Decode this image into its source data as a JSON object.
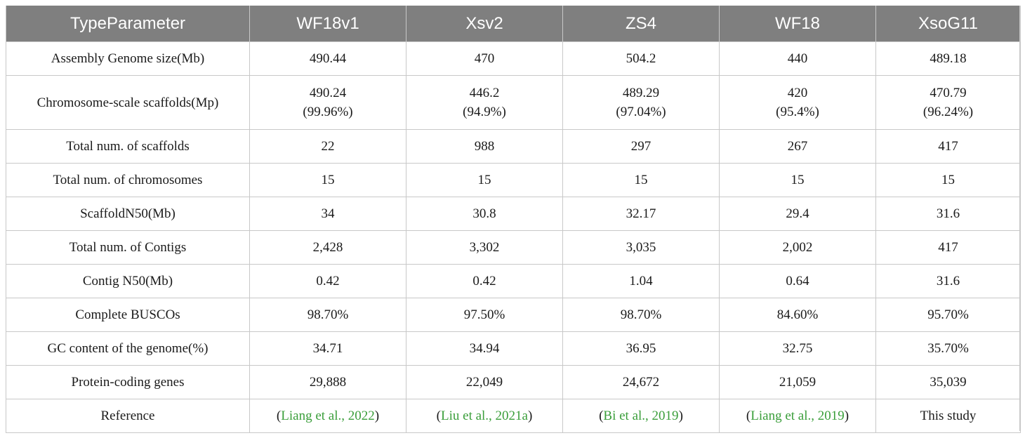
{
  "table": {
    "headers": [
      "TypeParameter",
      "WF18v1",
      "Xsv2",
      "ZS4",
      "WF18",
      "XsoG11"
    ],
    "rows": [
      {
        "label": "Assembly Genome size(Mb)",
        "cells": [
          "490.44",
          "470",
          "504.2",
          "440",
          "489.18"
        ]
      },
      {
        "label": "Chromosome-scale scaffolds(Mp)",
        "cells": [
          {
            "value": "490.24",
            "pct": "(99.96%)"
          },
          {
            "value": "446.2",
            "pct": "(94.9%)"
          },
          {
            "value": "489.29",
            "pct": "(97.04%)"
          },
          {
            "value": "420",
            "pct": "(95.4%)"
          },
          {
            "value": "470.79",
            "pct": "(96.24%)"
          }
        ]
      },
      {
        "label": "Total num. of scaffolds",
        "cells": [
          "22",
          "988",
          "297",
          "267",
          "417"
        ]
      },
      {
        "label": "Total num. of chromosomes",
        "cells": [
          "15",
          "15",
          "15",
          "15",
          "15"
        ]
      },
      {
        "label": "ScaffoldN50(Mb)",
        "cells": [
          "34",
          "30.8",
          "32.17",
          "29.4",
          "31.6"
        ]
      },
      {
        "label": "Total num. of Contigs",
        "cells": [
          "2,428",
          "3,302",
          "3,035",
          "2,002",
          "417"
        ]
      },
      {
        "label": "Contig N50(Mb)",
        "cells": [
          "0.42",
          "0.42",
          "1.04",
          "0.64",
          "31.6"
        ]
      },
      {
        "label": "Complete BUSCOs",
        "cells": [
          "98.70%",
          "97.50%",
          "98.70%",
          "84.60%",
          "95.70%"
        ]
      },
      {
        "label": "GC content of the genome(%)",
        "cells": [
          "34.71",
          "34.94",
          "36.95",
          "32.75",
          "35.70%"
        ]
      },
      {
        "label": "Protein-coding genes",
        "cells": [
          "29,888",
          "22,049",
          "24,672",
          "21,059",
          "35,039"
        ]
      }
    ],
    "reference": {
      "label": "Reference",
      "open": "(",
      "close": ")",
      "links": [
        "Liang et al., 2022",
        "Liu et al., 2021a",
        "Bi et al., 2019",
        "Liang et al., 2019"
      ],
      "this_study": "This study"
    }
  },
  "colors": {
    "header_bg": "#7f7f7f",
    "header_text": "#ffffff",
    "grid": "#c8c8c8",
    "link": "#3a9e3a"
  }
}
